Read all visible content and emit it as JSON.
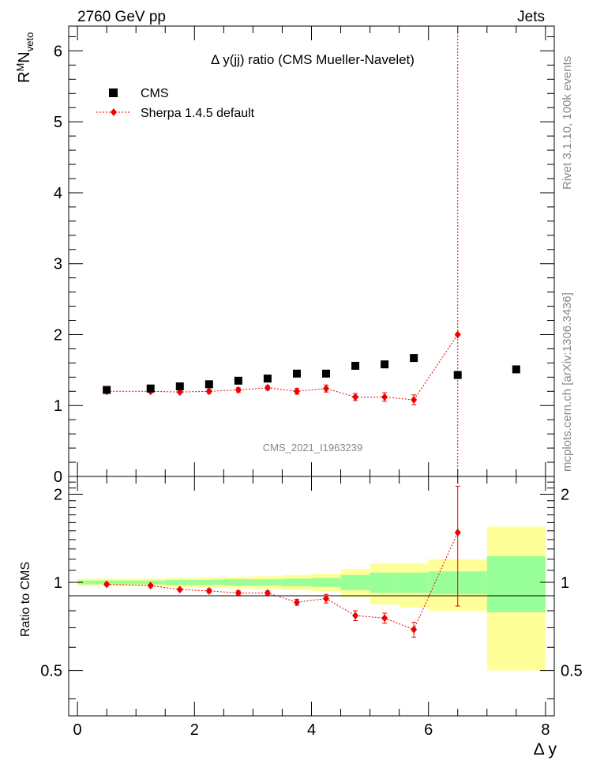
{
  "header": {
    "left": "2760 GeV pp",
    "right": "Jets"
  },
  "side_labels": {
    "rivet": "Rivet 3.1.10,  100k events",
    "mcplots": "mcplots.cern.ch [arXiv:1306.3436]"
  },
  "colors": {
    "mc": "#ee0000",
    "band_inner": "#99ff99",
    "band_outer": "#ffff99",
    "data": "#000000"
  },
  "chart_data": [
    {
      "type": "scatter",
      "title": "Δ y(jj) ratio (CMS Mueller-Navelet)",
      "watermark": "CMS_2021_I1963239",
      "ylabel_main": "R",
      "ylabel_sup": "M",
      "ylabel_mid": "N",
      "ylabel_sub": "veto",
      "xlim": [
        -0.15,
        8.15
      ],
      "ylim": [
        0,
        6.35
      ],
      "yticks": [
        0,
        1,
        2,
        3,
        4,
        5,
        6
      ],
      "yticklabels": [
        "0",
        "1",
        "2",
        "3",
        "4",
        "5",
        "6"
      ],
      "legend_position": "top-left",
      "series": [
        {
          "name": "CMS",
          "marker": "square",
          "x": [
            0.5,
            1.25,
            1.75,
            2.25,
            2.75,
            3.25,
            3.75,
            4.25,
            4.75,
            5.25,
            5.75,
            6.5,
            7.5
          ],
          "y": [
            1.22,
            1.24,
            1.27,
            1.3,
            1.35,
            1.38,
            1.45,
            1.45,
            1.56,
            1.58,
            1.67,
            1.43,
            1.51
          ]
        },
        {
          "name": "Sherpa 1.4.5 default",
          "marker": "diamond",
          "x": [
            0.5,
            1.25,
            1.75,
            2.25,
            2.75,
            3.25,
            3.75,
            4.25,
            4.75,
            5.25,
            5.75,
            6.5
          ],
          "y": [
            1.2,
            1.2,
            1.19,
            1.2,
            1.22,
            1.25,
            1.2,
            1.24,
            1.12,
            1.12,
            1.08,
            2.0
          ],
          "yerr": [
            0.02,
            0.02,
            0.02,
            0.03,
            0.03,
            0.03,
            0.04,
            0.05,
            0.05,
            0.06,
            0.07,
            4.5
          ]
        }
      ]
    },
    {
      "type": "scatter",
      "ylabel": "Ratio to CMS",
      "xlabel": "Δ y",
      "xlim": [
        -0.15,
        8.15
      ],
      "ylim": [
        0.35,
        2.3
      ],
      "xticks": [
        0,
        2,
        4,
        6,
        8
      ],
      "xticklabels": [
        "0",
        "2",
        "4",
        "6",
        "8"
      ],
      "yticks": [
        0.5,
        1,
        2
      ],
      "yticklabels": [
        "0.5",
        "1",
        "2"
      ],
      "bands": {
        "edges": [
          0,
          0.5,
          1,
          1.5,
          2,
          2.5,
          3,
          3.5,
          4,
          4.5,
          5,
          5.5,
          6,
          7,
          8
        ],
        "inner_lo": [
          0.985,
          0.985,
          0.985,
          0.98,
          0.98,
          0.975,
          0.975,
          0.97,
          0.965,
          0.94,
          0.92,
          0.92,
          0.91,
          0.79
        ],
        "inner_hi": [
          1.015,
          1.015,
          1.015,
          1.02,
          1.02,
          1.025,
          1.025,
          1.03,
          1.035,
          1.06,
          1.08,
          1.08,
          1.09,
          1.23
        ],
        "outer_lo": [
          0.97,
          0.97,
          0.97,
          0.965,
          0.96,
          0.955,
          0.95,
          0.94,
          0.93,
          0.89,
          0.84,
          0.82,
          0.8,
          0.5
        ],
        "outer_hi": [
          1.03,
          1.03,
          1.03,
          1.035,
          1.04,
          1.045,
          1.05,
          1.06,
          1.07,
          1.11,
          1.16,
          1.16,
          1.2,
          1.55
        ]
      },
      "series": [
        {
          "name": "Sherpa 1.4.5 default",
          "x": [
            0.5,
            1.25,
            1.75,
            2.25,
            2.75,
            3.25,
            3.75,
            4.25,
            4.75,
            5.25,
            5.75,
            6.5
          ],
          "y": [
            0.985,
            0.975,
            0.945,
            0.935,
            0.92,
            0.92,
            0.855,
            0.88,
            0.77,
            0.755,
            0.69,
            1.48
          ],
          "yerr": [
            0.01,
            0.01,
            0.01,
            0.015,
            0.015,
            0.015,
            0.02,
            0.03,
            0.03,
            0.03,
            0.04,
            0.65
          ]
        }
      ]
    }
  ]
}
